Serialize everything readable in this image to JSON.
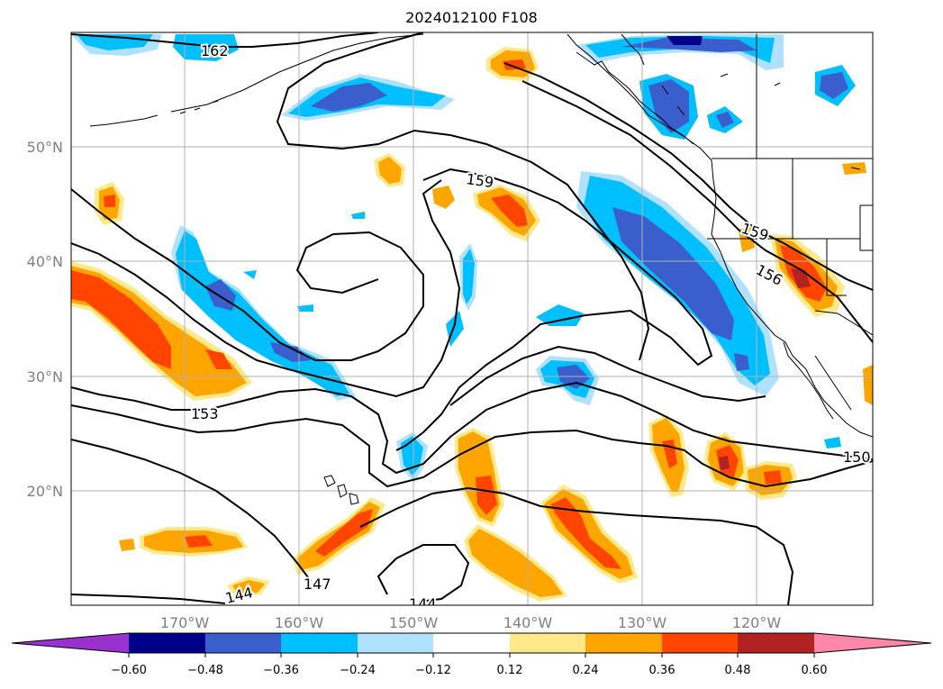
{
  "title": "2024012100 F108",
  "map": {
    "lat_labels": [
      "50°N",
      "40°N",
      "30°N",
      "20°N"
    ],
    "lon_labels": [
      "170°W",
      "160°W",
      "150°W",
      "140°W",
      "130°W",
      "120°W"
    ],
    "contour_labels": [
      "162",
      "159",
      "159",
      "156",
      "153",
      "150",
      "147",
      "144",
      "144"
    ],
    "grid": true
  },
  "colorbar": {
    "ticks": [
      "−0.60",
      "−0.48",
      "−0.36",
      "−0.24",
      "−0.12",
      "0.12",
      "0.24",
      "0.36",
      "0.48",
      "0.60"
    ],
    "colors": [
      "#9932cc",
      "#00008b",
      "#3a5fcd",
      "#00bfff",
      "#b0e2ff",
      "#ffffff",
      "#ffe98a",
      "#ffa500",
      "#ff4500",
      "#b22222",
      "#ff88aa"
    ]
  }
}
